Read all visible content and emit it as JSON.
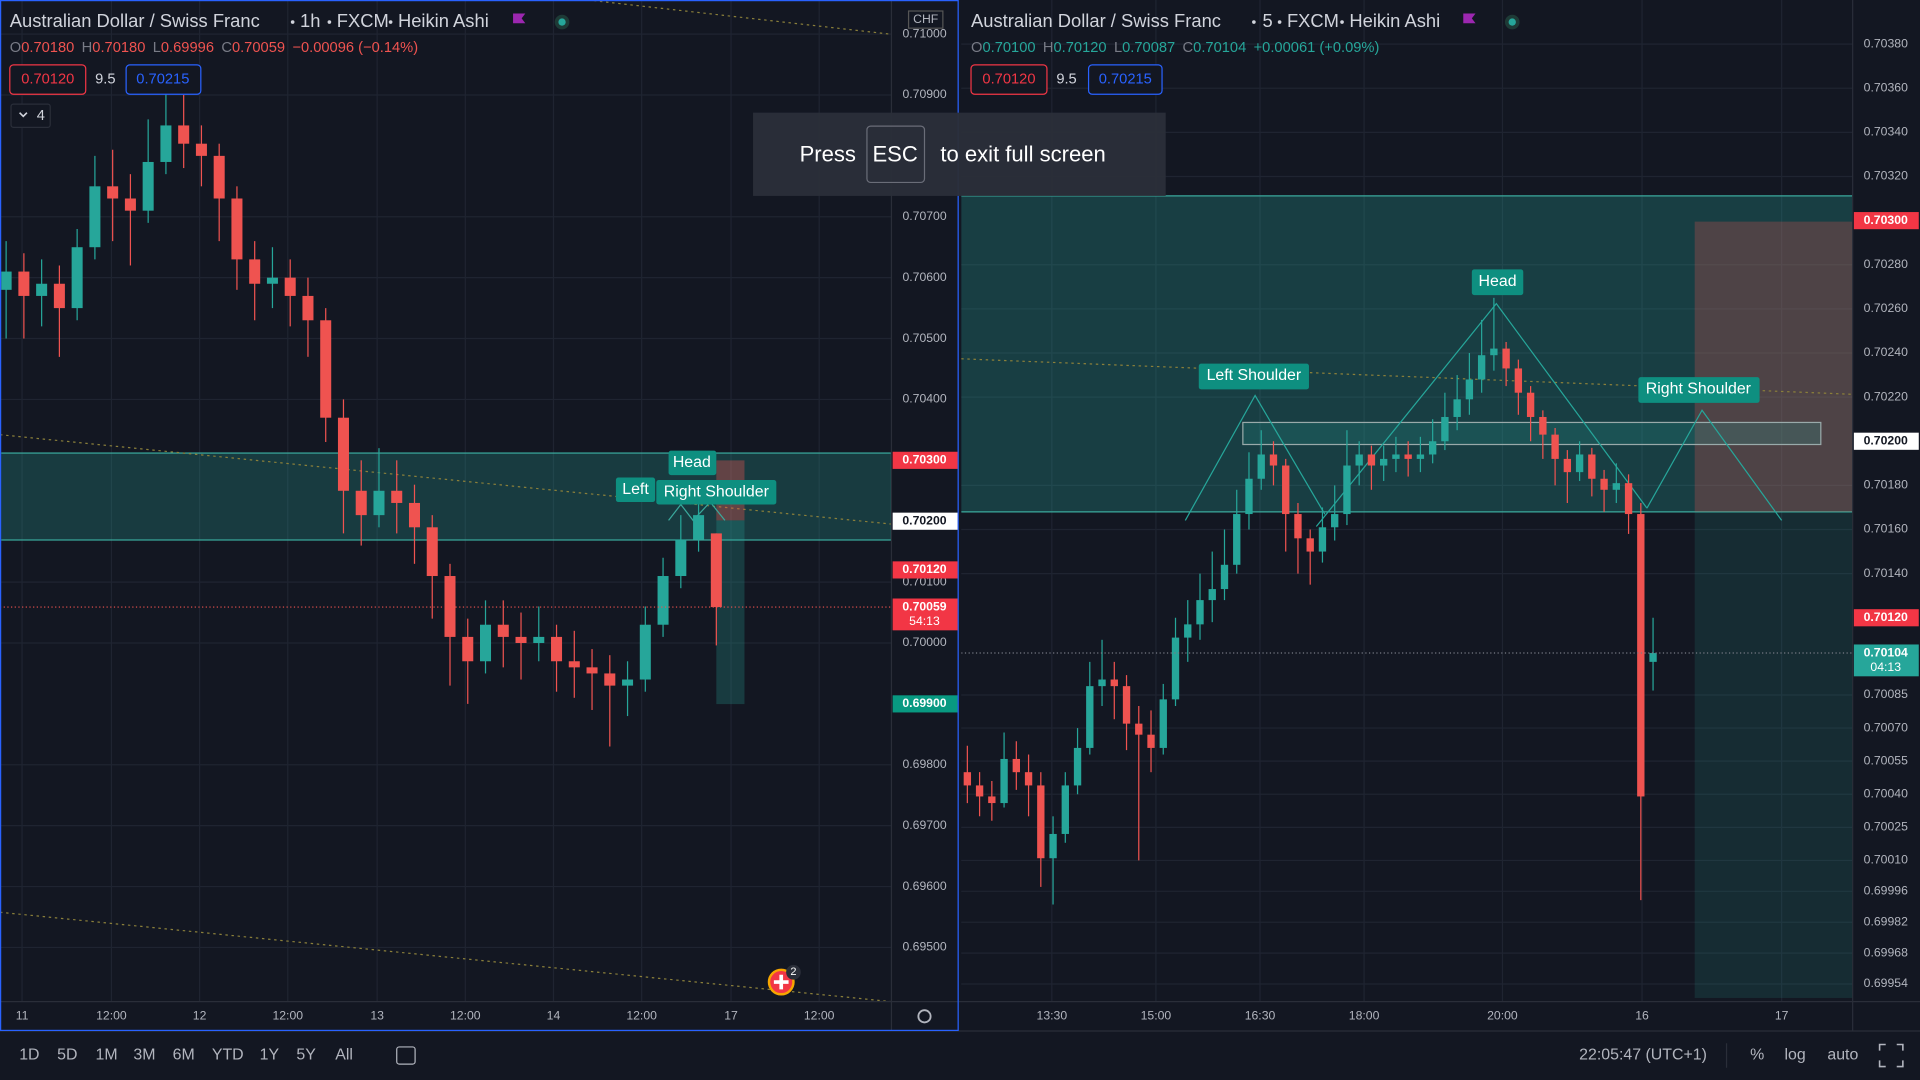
{
  "left_chart": {
    "symbol": "Australian Dollar / Swiss Franc",
    "interval": "1h",
    "source": "FXCM",
    "style": "Heikin Ashi",
    "ohlc": [
      {
        "label": "O",
        "value": "0.70180"
      },
      {
        "label": "H",
        "value": "0.70180"
      },
      {
        "label": "L",
        "value": "0.69996"
      },
      {
        "label": "C",
        "value": "0.70059"
      }
    ],
    "change": "−0.00096 (−0.14%)",
    "buttons": {
      "sell": "0.70120",
      "spread": "9.5",
      "buy": "0.70215"
    },
    "indicator_count": "4",
    "currency": "CHF",
    "up_color": "#26a69a",
    "down_color": "#ef5350",
    "ylim": [
      0.69411,
      0.71056
    ],
    "yticks": [
      {
        "value": 0.71,
        "label": "0.71000"
      },
      {
        "value": 0.709,
        "label": "0.70900"
      },
      {
        "value": 0.707,
        "label": "0.70700"
      },
      {
        "value": 0.706,
        "label": "0.70600"
      },
      {
        "value": 0.705,
        "label": "0.70500"
      },
      {
        "value": 0.704,
        "label": "0.70400"
      },
      {
        "value": 0.701,
        "label": "0.70100"
      },
      {
        "value": 0.7,
        "label": "0.70000"
      },
      {
        "value": 0.698,
        "label": "0.69800"
      },
      {
        "value": 0.697,
        "label": "0.69700"
      },
      {
        "value": 0.696,
        "label": "0.69600"
      },
      {
        "value": 0.695,
        "label": "0.69500"
      }
    ],
    "badges": [
      {
        "value": 0.703,
        "label": "0.70300",
        "color": "#f23645",
        "text_color": "#ffffff"
      },
      {
        "value": 0.702,
        "label": "0.70200",
        "color": "#ffffff",
        "text_color": "#131722"
      },
      {
        "value": 0.7012,
        "label": "0.70120",
        "color": "#f23645",
        "text_color": "#ffffff"
      },
      {
        "value": 0.70059,
        "label": "0.70059",
        "color": "#f23645",
        "text_color": "#ffffff",
        "countdown": "54:13"
      },
      {
        "value": 0.699,
        "label": "0.69900",
        "color": "#089981",
        "text_color": "#ffffff"
      }
    ],
    "time_labels": [
      "11",
      "12:00",
      "12",
      "12:00",
      "13",
      "12:00",
      "14",
      "12:00",
      "17",
      "12:00"
    ],
    "pattern_labels": [
      "Head",
      "Left",
      "Right Shoulder"
    ],
    "alert_count": "2",
    "candles": [
      [
        0.7058,
        0.7066,
        0.705,
        0.7061
      ],
      [
        0.7061,
        0.7064,
        0.705,
        0.7057
      ],
      [
        0.7057,
        0.7063,
        0.7052,
        0.7059
      ],
      [
        0.7059,
        0.7062,
        0.7047,
        0.7055
      ],
      [
        0.7055,
        0.7068,
        0.7053,
        0.7065
      ],
      [
        0.7065,
        0.708,
        0.7063,
        0.7075
      ],
      [
        0.7075,
        0.7081,
        0.7066,
        0.7073
      ],
      [
        0.7073,
        0.7077,
        0.7062,
        0.7071
      ],
      [
        0.7071,
        0.7086,
        0.7069,
        0.7079
      ],
      [
        0.7079,
        0.7094,
        0.7077,
        0.7085
      ],
      [
        0.7085,
        0.709,
        0.7078,
        0.7082
      ],
      [
        0.7082,
        0.7085,
        0.7075,
        0.708
      ],
      [
        0.708,
        0.7082,
        0.7066,
        0.7073
      ],
      [
        0.7073,
        0.7075,
        0.7058,
        0.7063
      ],
      [
        0.7063,
        0.7066,
        0.7053,
        0.7059
      ],
      [
        0.7059,
        0.7065,
        0.7055,
        0.706
      ],
      [
        0.706,
        0.7063,
        0.7052,
        0.7057
      ],
      [
        0.7057,
        0.706,
        0.7047,
        0.7053
      ],
      [
        0.7053,
        0.7055,
        0.7033,
        0.7037
      ],
      [
        0.7037,
        0.704,
        0.7018,
        0.7025
      ],
      [
        0.7025,
        0.703,
        0.7016,
        0.7021
      ],
      [
        0.7021,
        0.7032,
        0.7019,
        0.7025
      ],
      [
        0.7025,
        0.703,
        0.7018,
        0.7023
      ],
      [
        0.7023,
        0.7026,
        0.7013,
        0.7019
      ],
      [
        0.7019,
        0.7021,
        0.7004,
        0.7011
      ],
      [
        0.7011,
        0.7013,
        0.6993,
        0.7001
      ],
      [
        0.7001,
        0.7004,
        0.699,
        0.6997
      ],
      [
        0.6997,
        0.7007,
        0.6995,
        0.7003
      ],
      [
        0.7003,
        0.7007,
        0.6996,
        0.7001
      ],
      [
        0.7001,
        0.7005,
        0.6994,
        0.7
      ],
      [
        0.7,
        0.7006,
        0.6997,
        0.7001
      ],
      [
        0.7001,
        0.7003,
        0.6992,
        0.6997
      ],
      [
        0.6997,
        0.7002,
        0.6991,
        0.6996
      ],
      [
        0.6996,
        0.6999,
        0.6989,
        0.6995
      ],
      [
        0.6995,
        0.6998,
        0.6983,
        0.6993
      ],
      [
        0.6993,
        0.6997,
        0.6988,
        0.6994
      ],
      [
        0.6994,
        0.7006,
        0.6992,
        0.7003
      ],
      [
        0.7003,
        0.7014,
        0.7001,
        0.7011
      ],
      [
        0.7011,
        0.7021,
        0.7009,
        0.7017
      ],
      [
        0.7017,
        0.7024,
        0.7015,
        0.7021
      ],
      [
        0.7018,
        0.7018,
        0.69996,
        0.70059
      ]
    ]
  },
  "right_chart": {
    "symbol": "Australian Dollar / Swiss Franc",
    "interval": "5",
    "source": "FXCM",
    "style": "Heikin Ashi",
    "ohlc": [
      {
        "label": "O",
        "value": "0.70100"
      },
      {
        "label": "H",
        "value": "0.70120"
      },
      {
        "label": "L",
        "value": "0.70087"
      },
      {
        "label": "C",
        "value": "0.70104"
      }
    ],
    "change": "+0.00061 (+0.09%)",
    "buttons": {
      "sell": "0.70120",
      "spread": "9.5",
      "buy": "0.70215"
    },
    "up_color": "#26a69a",
    "down_color": "#ef5350",
    "ylim": [
      0.69946,
      0.704
    ],
    "yticks": [
      {
        "value": 0.7038,
        "label": "0.70380"
      },
      {
        "value": 0.7036,
        "label": "0.70360"
      },
      {
        "value": 0.7034,
        "label": "0.70340"
      },
      {
        "value": 0.7032,
        "label": "0.70320"
      },
      {
        "value": 0.7028,
        "label": "0.70280"
      },
      {
        "value": 0.7026,
        "label": "0.70260"
      },
      {
        "value": 0.7024,
        "label": "0.70240"
      },
      {
        "value": 0.7022,
        "label": "0.70220"
      },
      {
        "value": 0.7018,
        "label": "0.70180"
      },
      {
        "value": 0.7016,
        "label": "0.70160"
      },
      {
        "value": 0.7014,
        "label": "0.70140"
      },
      {
        "value": 0.70085,
        "label": "0.70085"
      },
      {
        "value": 0.7007,
        "label": "0.70070"
      },
      {
        "value": 0.70055,
        "label": "0.70055"
      },
      {
        "value": 0.7004,
        "label": "0.70040"
      },
      {
        "value": 0.70025,
        "label": "0.70025"
      },
      {
        "value": 0.7001,
        "label": "0.70010"
      },
      {
        "value": 0.69996,
        "label": "0.69996"
      },
      {
        "value": 0.69982,
        "label": "0.69982"
      },
      {
        "value": 0.69968,
        "label": "0.69968"
      },
      {
        "value": 0.69954,
        "label": "0.69954"
      }
    ],
    "badges": [
      {
        "value": 0.703,
        "label": "0.70300",
        "color": "#f23645",
        "text_color": "#ffffff"
      },
      {
        "value": 0.702,
        "label": "0.70200",
        "color": "#ffffff",
        "text_color": "#131722"
      },
      {
        "value": 0.7012,
        "label": "0.70120",
        "color": "#f23645",
        "text_color": "#ffffff"
      },
      {
        "value": 0.70104,
        "label": "0.70104",
        "color": "#26a69a",
        "text_color": "#ffffff",
        "countdown": "04:13"
      }
    ],
    "time_labels": [
      "13:30",
      "15:00",
      "16:30",
      "18:00",
      "20:00",
      "16",
      "17"
    ],
    "pattern_labels": [
      "Left Shoulder",
      "Head",
      "Right Shoulder"
    ],
    "candles": [
      [
        0.7005,
        0.70062,
        0.70036,
        0.70044
      ],
      [
        0.70044,
        0.7005,
        0.7003,
        0.70039
      ],
      [
        0.70039,
        0.70046,
        0.70028,
        0.70036
      ],
      [
        0.70036,
        0.70068,
        0.70034,
        0.70056
      ],
      [
        0.70056,
        0.70064,
        0.70042,
        0.7005
      ],
      [
        0.7005,
        0.70058,
        0.7003,
        0.70044
      ],
      [
        0.70044,
        0.7005,
        0.69998,
        0.70011
      ],
      [
        0.70011,
        0.7003,
        0.6999,
        0.70022
      ],
      [
        0.70022,
        0.7005,
        0.70018,
        0.70044
      ],
      [
        0.70044,
        0.7007,
        0.7004,
        0.70061
      ],
      [
        0.70061,
        0.701,
        0.70058,
        0.70089
      ],
      [
        0.70089,
        0.7011,
        0.7008,
        0.70092
      ],
      [
        0.70092,
        0.701,
        0.70074,
        0.70089
      ],
      [
        0.70089,
        0.70094,
        0.7006,
        0.70072
      ],
      [
        0.70072,
        0.7008,
        0.7001,
        0.70067
      ],
      [
        0.70067,
        0.70078,
        0.7005,
        0.70061
      ],
      [
        0.70061,
        0.7009,
        0.70058,
        0.70083
      ],
      [
        0.70083,
        0.7012,
        0.7008,
        0.70111
      ],
      [
        0.70111,
        0.70128,
        0.701,
        0.70117
      ],
      [
        0.70117,
        0.7014,
        0.7011,
        0.70128
      ],
      [
        0.70128,
        0.7015,
        0.70118,
        0.70133
      ],
      [
        0.70133,
        0.7016,
        0.70128,
        0.70144
      ],
      [
        0.70144,
        0.70178,
        0.7014,
        0.70167
      ],
      [
        0.70167,
        0.70195,
        0.7016,
        0.70183
      ],
      [
        0.70183,
        0.70205,
        0.70178,
        0.70194
      ],
      [
        0.70194,
        0.702,
        0.7018,
        0.70189
      ],
      [
        0.70189,
        0.70192,
        0.7015,
        0.70167
      ],
      [
        0.70167,
        0.70172,
        0.7014,
        0.70156
      ],
      [
        0.70156,
        0.7016,
        0.70135,
        0.7015
      ],
      [
        0.7015,
        0.7017,
        0.70145,
        0.70161
      ],
      [
        0.70161,
        0.7018,
        0.70155,
        0.70167
      ],
      [
        0.70167,
        0.70205,
        0.70162,
        0.70189
      ],
      [
        0.70189,
        0.702,
        0.7018,
        0.70194
      ],
      [
        0.70194,
        0.70198,
        0.70178,
        0.70189
      ],
      [
        0.70189,
        0.70198,
        0.70182,
        0.70192
      ],
      [
        0.70192,
        0.70202,
        0.70186,
        0.70194
      ],
      [
        0.70194,
        0.702,
        0.70184,
        0.70192
      ],
      [
        0.70192,
        0.70202,
        0.70186,
        0.70194
      ],
      [
        0.70194,
        0.7021,
        0.7019,
        0.702
      ],
      [
        0.702,
        0.70222,
        0.70196,
        0.70211
      ],
      [
        0.70211,
        0.7023,
        0.70205,
        0.70219
      ],
      [
        0.70219,
        0.7024,
        0.70212,
        0.70228
      ],
      [
        0.70228,
        0.70255,
        0.70222,
        0.70239
      ],
      [
        0.70239,
        0.70265,
        0.70232,
        0.70242
      ],
      [
        0.70242,
        0.70245,
        0.70225,
        0.70233
      ],
      [
        0.70233,
        0.70237,
        0.70212,
        0.70222
      ],
      [
        0.70222,
        0.70225,
        0.702,
        0.70211
      ],
      [
        0.70211,
        0.70214,
        0.70192,
        0.70203
      ],
      [
        0.70203,
        0.70206,
        0.7018,
        0.70192
      ],
      [
        0.70192,
        0.70196,
        0.70172,
        0.70186
      ],
      [
        0.70186,
        0.702,
        0.70182,
        0.70194
      ],
      [
        0.70194,
        0.70197,
        0.70175,
        0.70183
      ],
      [
        0.70183,
        0.70187,
        0.70168,
        0.70178
      ],
      [
        0.70178,
        0.7019,
        0.70172,
        0.70181
      ],
      [
        0.70181,
        0.70185,
        0.70158,
        0.70167
      ],
      [
        0.70167,
        0.70172,
        0.69992,
        0.70039
      ],
      [
        0.701,
        0.7012,
        0.70087,
        0.70104
      ]
    ]
  },
  "overlay": {
    "press": "Press",
    "key": "ESC",
    "message": "to exit full screen"
  },
  "toolbar": {
    "ranges": [
      "1D",
      "5D",
      "1M",
      "3M",
      "6M",
      "YTD",
      "1Y",
      "5Y",
      "All"
    ],
    "clock": "22:05:47 (UTC+1)",
    "percent": "%",
    "log": "log",
    "auto": "auto"
  }
}
